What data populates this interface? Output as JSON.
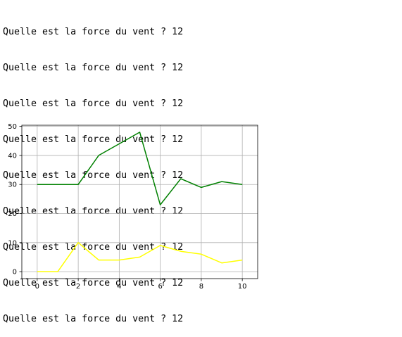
{
  "console": {
    "lines": [
      "Quelle est la force du vent ? 12",
      "Quelle est la force du vent ? 12",
      "Quelle est la force du vent ? 12",
      "Quelle est la force du vent ? 12",
      "Quelle est la force du vent ? 12",
      "Quelle est la force du vent ? 12",
      "Quelle est la force du vent ? 12",
      "Quelle est la force du vent ? 12",
      "Quelle est la force du vent ? 12"
    ]
  },
  "chart_data": {
    "type": "line",
    "x": [
      0,
      1,
      2,
      3,
      4,
      5,
      6,
      7,
      8,
      9,
      10
    ],
    "series": [
      {
        "color": "#008000",
        "values": [
          30,
          30,
          30,
          40,
          44,
          48,
          23,
          32,
          29,
          31,
          30
        ]
      },
      {
        "color": "#ffff00",
        "values": [
          0,
          0,
          10,
          4,
          4,
          5,
          9,
          7,
          6,
          3,
          4
        ]
      }
    ],
    "xlim": [
      -0.75,
      10.75
    ],
    "ylim": [
      -2.4,
      50.4
    ],
    "xticks": [
      "0",
      "2",
      "4",
      "6",
      "8",
      "10"
    ],
    "yticks": [
      "0",
      "10",
      "20",
      "30",
      "40",
      "50"
    ],
    "grid": true,
    "title": "",
    "xlabel": "",
    "ylabel": ""
  }
}
